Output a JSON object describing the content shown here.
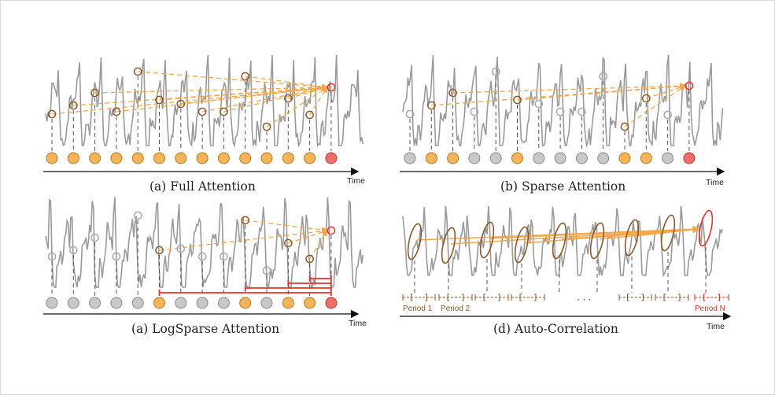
{
  "panels": [
    {
      "id": "full",
      "caption": "(a) Full Attention",
      "time_label": "Time",
      "dots": [
        "orange",
        "orange",
        "orange",
        "orange",
        "orange",
        "orange",
        "orange",
        "orange",
        "orange",
        "orange",
        "orange",
        "orange",
        "orange",
        "red"
      ]
    },
    {
      "id": "sparse",
      "caption": "(b) Sparse Attention",
      "time_label": "Time",
      "dots": [
        "gray",
        "orange",
        "orange",
        "gray",
        "gray",
        "orange",
        "gray",
        "gray",
        "gray",
        "gray",
        "orange",
        "orange",
        "gray",
        "red"
      ]
    },
    {
      "id": "logsparse",
      "caption": "(a) LogSparse Attention",
      "time_label": "Time",
      "dots": [
        "gray",
        "gray",
        "gray",
        "gray",
        "gray",
        "orange",
        "gray",
        "gray",
        "gray",
        "orange",
        "gray",
        "orange",
        "orange",
        "red"
      ]
    },
    {
      "id": "autocorr",
      "caption": "(d) Auto-Correlation",
      "time_label": "Time",
      "period_labels": [
        "Period 1",
        "Period 2",
        "Period N"
      ],
      "ellipsis": "· · ·"
    }
  ],
  "colors": {
    "orange": "#f5b35a",
    "red": "#ee6e6e",
    "gray": "#c8c8c8",
    "arrow": "#f4a64a",
    "signal": "#9a9a9a",
    "brown": "#8b5a2b",
    "redline": "#e8332a"
  }
}
